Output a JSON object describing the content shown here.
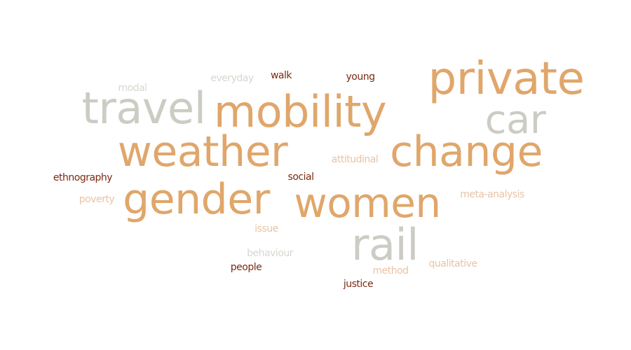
{
  "palette": {
    "orange": "#e0a66a",
    "grey": "#ccccc4",
    "light_orange": "#e8c3a5",
    "light_grey": "#d8d6cf",
    "dark_red": "#7a2a12"
  },
  "words": [
    {
      "text": "private",
      "color": "orange",
      "weight": 1.0
    },
    {
      "text": "mobility",
      "color": "orange",
      "weight": 0.95
    },
    {
      "text": "travel",
      "color": "grey",
      "weight": 0.93
    },
    {
      "text": "car",
      "color": "grey",
      "weight": 0.88
    },
    {
      "text": "change",
      "color": "orange",
      "weight": 0.96
    },
    {
      "text": "weather",
      "color": "orange",
      "weight": 0.93
    },
    {
      "text": "gender",
      "color": "orange",
      "weight": 0.92
    },
    {
      "text": "women",
      "color": "orange",
      "weight": 0.9
    },
    {
      "text": "rail",
      "color": "grey",
      "weight": 0.88
    },
    {
      "text": "modal",
      "color": "light_grey",
      "weight": 0.2
    },
    {
      "text": "everyday",
      "color": "light_grey",
      "weight": 0.2
    },
    {
      "text": "walk",
      "color": "dark_red",
      "weight": 0.2
    },
    {
      "text": "young",
      "color": "dark_red",
      "weight": 0.2
    },
    {
      "text": "attitudinal",
      "color": "light_orange",
      "weight": 0.2
    },
    {
      "text": "ethnography",
      "color": "dark_red",
      "weight": 0.2
    },
    {
      "text": "social",
      "color": "dark_red",
      "weight": 0.2
    },
    {
      "text": "poverty",
      "color": "light_orange",
      "weight": 0.2
    },
    {
      "text": "meta-analysis",
      "color": "light_orange",
      "weight": 0.2
    },
    {
      "text": "issue",
      "color": "light_orange",
      "weight": 0.2
    },
    {
      "text": "behaviour",
      "color": "light_grey",
      "weight": 0.2
    },
    {
      "text": "people",
      "color": "dark_red",
      "weight": 0.2
    },
    {
      "text": "method",
      "color": "light_orange",
      "weight": 0.2
    },
    {
      "text": "qualitative",
      "color": "light_orange",
      "weight": 0.2
    },
    {
      "text": "justice",
      "color": "dark_red",
      "weight": 0.2
    }
  ]
}
